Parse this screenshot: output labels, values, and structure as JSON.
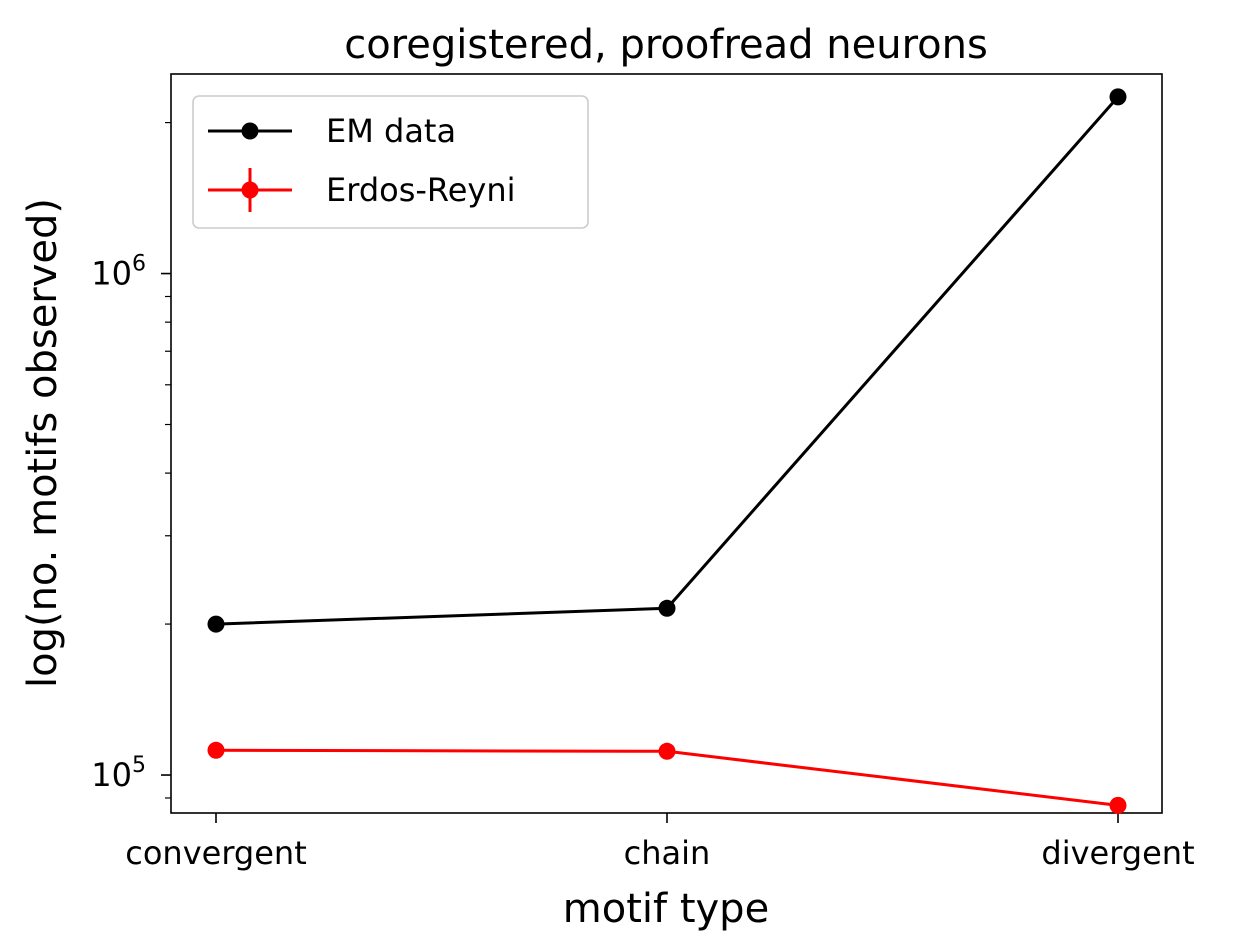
{
  "chart_data": {
    "type": "line",
    "title": "coregistered, proofread neurons",
    "xlabel": "motif type",
    "ylabel": "log(no. motifs observed)",
    "categories": [
      "convergent",
      "chain",
      "divergent"
    ],
    "yscale": "log",
    "ylim": [
      84000,
      2500000
    ],
    "yticks": [
      {
        "value": 100000,
        "base": "10",
        "exp": "5"
      },
      {
        "value": 1000000,
        "base": "10",
        "exp": "6"
      }
    ],
    "series": [
      {
        "name": "EM data",
        "color": "#000000",
        "values": [
          200000,
          215000,
          2250000
        ]
      },
      {
        "name": "Erdos-Reyni",
        "color": "#ff0000",
        "values": [
          112000,
          111500,
          87000
        ]
      }
    ],
    "legend": "top-left",
    "grid": false
  }
}
